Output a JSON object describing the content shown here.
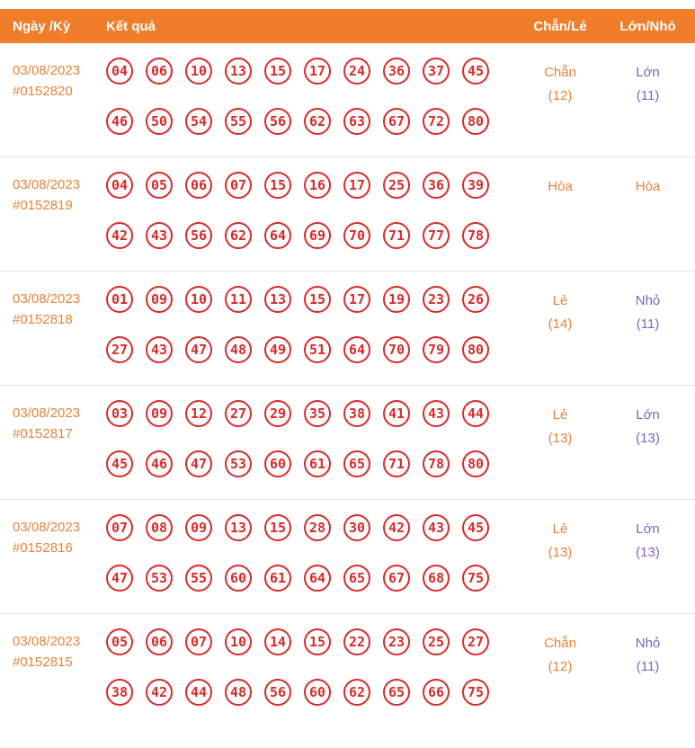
{
  "table": {
    "columns": {
      "date": "Ngày /Kỳ",
      "result": "Kết quả",
      "even_odd": "Chẵn/Lẻ",
      "big_small": "Lớn/Nhỏ"
    }
  },
  "colors": {
    "header_bg": "#ef7d2a",
    "header_text": "#ffffff",
    "date_text": "#e8833a",
    "ball_border": "#d92b2b",
    "ball_text": "#d92b2b",
    "even_odd_text": "#e8833a",
    "big_small_text": "#7d64c3",
    "tie_text": "#e8833a",
    "divider": "#e3e3e3"
  },
  "rows": [
    {
      "date": "03/08/2023",
      "period": "#0152820",
      "numbers_line1": [
        "04",
        "06",
        "10",
        "13",
        "15",
        "17",
        "24",
        "36",
        "37",
        "45"
      ],
      "numbers_line2": [
        "46",
        "50",
        "54",
        "55",
        "56",
        "62",
        "63",
        "67",
        "72",
        "80"
      ],
      "even_odd_label": "Chẵn",
      "even_odd_count": "(12)",
      "big_small_label": "Lớn",
      "big_small_count": "(11)",
      "big_small_color": "purple"
    },
    {
      "date": "03/08/2023",
      "period": "#0152819",
      "numbers_line1": [
        "04",
        "05",
        "06",
        "07",
        "15",
        "16",
        "17",
        "25",
        "36",
        "39"
      ],
      "numbers_line2": [
        "42",
        "43",
        "56",
        "62",
        "64",
        "69",
        "70",
        "71",
        "77",
        "78"
      ],
      "even_odd_label": "Hòa",
      "even_odd_count": "",
      "big_small_label": "Hòa",
      "big_small_count": "",
      "big_small_color": "orange"
    },
    {
      "date": "03/08/2023",
      "period": "#0152818",
      "numbers_line1": [
        "01",
        "09",
        "10",
        "11",
        "13",
        "15",
        "17",
        "19",
        "23",
        "26"
      ],
      "numbers_line2": [
        "27",
        "43",
        "47",
        "48",
        "49",
        "51",
        "64",
        "70",
        "79",
        "80"
      ],
      "even_odd_label": "Lẻ",
      "even_odd_count": "(14)",
      "big_small_label": "Nhỏ",
      "big_small_count": "(11)",
      "big_small_color": "purple"
    },
    {
      "date": "03/08/2023",
      "period": "#0152817",
      "numbers_line1": [
        "03",
        "09",
        "12",
        "27",
        "29",
        "35",
        "38",
        "41",
        "43",
        "44"
      ],
      "numbers_line2": [
        "45",
        "46",
        "47",
        "53",
        "60",
        "61",
        "65",
        "71",
        "78",
        "80"
      ],
      "even_odd_label": "Lẻ",
      "even_odd_count": "(13)",
      "big_small_label": "Lớn",
      "big_small_count": "(13)",
      "big_small_color": "purple"
    },
    {
      "date": "03/08/2023",
      "period": "#0152816",
      "numbers_line1": [
        "07",
        "08",
        "09",
        "13",
        "15",
        "28",
        "30",
        "42",
        "43",
        "45"
      ],
      "numbers_line2": [
        "47",
        "53",
        "55",
        "60",
        "61",
        "64",
        "65",
        "67",
        "68",
        "75"
      ],
      "even_odd_label": "Lẻ",
      "even_odd_count": "(13)",
      "big_small_label": "Lớn",
      "big_small_count": "(13)",
      "big_small_color": "purple"
    },
    {
      "date": "03/08/2023",
      "period": "#0152815",
      "numbers_line1": [
        "05",
        "06",
        "07",
        "10",
        "14",
        "15",
        "22",
        "23",
        "25",
        "27"
      ],
      "numbers_line2": [
        "38",
        "42",
        "44",
        "48",
        "56",
        "60",
        "62",
        "65",
        "66",
        "75"
      ],
      "even_odd_label": "Chẵn",
      "even_odd_count": "(12)",
      "big_small_label": "Nhỏ",
      "big_small_count": "(11)",
      "big_small_color": "purple"
    }
  ]
}
